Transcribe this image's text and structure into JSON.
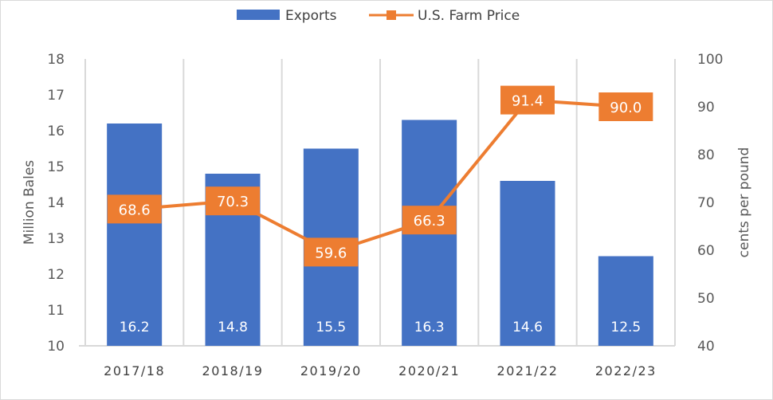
{
  "chart_data": {
    "type": "bar",
    "title": "",
    "categories": [
      "2017/18",
      "2018/19",
      "2019/20",
      "2020/21",
      "2021/22",
      "2022/23"
    ],
    "series": [
      {
        "name": "Exports",
        "type": "bar",
        "axis": "left",
        "color": "#4472C4",
        "values": [
          16.2,
          14.8,
          15.5,
          16.3,
          14.6,
          12.5
        ],
        "labels": [
          "16.2",
          "14.8",
          "15.5",
          "16.3",
          "14.6",
          "12.5"
        ]
      },
      {
        "name": "U.S. Farm Price",
        "type": "line",
        "axis": "right",
        "color": "#ED7D31",
        "marker": "square",
        "values": [
          68.6,
          70.3,
          59.6,
          66.3,
          91.4,
          90.0
        ],
        "labels": [
          "68.6",
          "70.3",
          "59.6",
          "66.3",
          "91.4",
          "90.0"
        ]
      }
    ],
    "ylabel": "Million Bales",
    "ylim": [
      10,
      18
    ],
    "yticks": [
      "10",
      "11",
      "12",
      "13",
      "14",
      "15",
      "16",
      "17",
      "18"
    ],
    "y2label": "cents per pound",
    "y2lim": [
      40,
      100
    ],
    "y2ticks": [
      "40",
      "50",
      "60",
      "70",
      "80",
      "90",
      "100"
    ],
    "grid": "vertical lines between categories",
    "legend_position": "top"
  }
}
